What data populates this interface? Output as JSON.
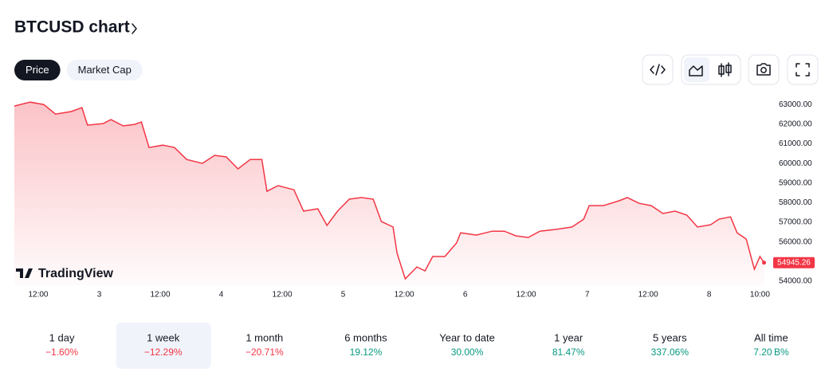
{
  "header": {
    "title": "BTCUSD chart"
  },
  "tabs": {
    "items": [
      "Price",
      "Market Cap"
    ],
    "active": 0
  },
  "watermark": "TradingView",
  "chart_data": {
    "type": "area",
    "color": "#f23645",
    "x": [
      -16.7,
      -13.6,
      -10.9,
      -8.6,
      -5.5,
      -3.4,
      -2.3,
      0.8,
      2.3,
      4.7,
      7.0,
      8.3,
      9.8,
      12.5,
      14.8,
      17.2,
      20.3,
      22.7,
      25.0,
      27.3,
      29.7,
      32.0,
      33.0,
      35.2,
      38.3,
      40.2,
      43.0,
      44.8,
      46.9,
      49.2,
      51.6,
      53.9,
      55.5,
      57.8,
      58.6,
      60.2,
      62.5,
      64.1,
      65.6,
      68.0,
      70.3,
      71.1,
      74.2,
      77.3,
      79.7,
      82.0,
      84.4,
      86.7,
      89.8,
      93.0,
      95.3,
      96.4,
      99.2,
      102.3,
      103.9,
      106.2,
      108.6,
      110.9,
      113.3,
      115.6,
      117.7,
      120.3,
      121.9,
      124.2,
      125.5,
      127.3,
      128.9,
      130.0,
      130.8
    ],
    "values": [
      62920,
      63120,
      63000,
      62510,
      62640,
      62840,
      61950,
      62030,
      62230,
      61910,
      61990,
      62110,
      60810,
      60930,
      60810,
      60200,
      60000,
      60410,
      60330,
      59720,
      60200,
      60200,
      58580,
      58870,
      58660,
      57570,
      57690,
      56840,
      57570,
      58180,
      58260,
      58180,
      57040,
      56760,
      55420,
      54120,
      54730,
      54530,
      55260,
      55260,
      55950,
      56470,
      56350,
      56550,
      56550,
      56310,
      56230,
      56550,
      56640,
      56760,
      57160,
      57850,
      57850,
      58100,
      58260,
      57970,
      57850,
      57450,
      57570,
      57370,
      56760,
      56880,
      57160,
      57280,
      56470,
      56150,
      54610,
      55260,
      54945.26
    ],
    "xlim": [
      -16.7,
      131.5
    ],
    "ylim": [
      53800,
      63250
    ],
    "xticks": [
      {
        "value": -12,
        "label": "12:00"
      },
      {
        "value": 0,
        "label": "3"
      },
      {
        "value": 12,
        "label": "12:00"
      },
      {
        "value": 24,
        "label": "4"
      },
      {
        "value": 36,
        "label": "12:00"
      },
      {
        "value": 48,
        "label": "5"
      },
      {
        "value": 60,
        "label": "12:00"
      },
      {
        "value": 72,
        "label": "6"
      },
      {
        "value": 84,
        "label": "12:00"
      },
      {
        "value": 96,
        "label": "7"
      },
      {
        "value": 108,
        "label": "12:00"
      },
      {
        "value": 120,
        "label": "8"
      },
      {
        "value": 130,
        "label": "10:00"
      }
    ],
    "yticks": [
      {
        "value": 54000,
        "label": "54000.00"
      },
      {
        "value": 56000,
        "label": "56000.00"
      },
      {
        "value": 57000,
        "label": "57000.00"
      },
      {
        "value": 58000,
        "label": "58000.00"
      },
      {
        "value": 59000,
        "label": "59000.00"
      },
      {
        "value": 60000,
        "label": "60000.00"
      },
      {
        "value": 61000,
        "label": "61000.00"
      },
      {
        "value": 62000,
        "label": "62000.00"
      },
      {
        "value": 63000,
        "label": "63000.00"
      }
    ]
  },
  "periods": {
    "selected": 1,
    "items": [
      {
        "label": "1 day",
        "change": "−1.60%",
        "color": "#f23645"
      },
      {
        "label": "1 week",
        "change": "−12.29%",
        "color": "#f23645"
      },
      {
        "label": "1 month",
        "change": "−20.71%",
        "color": "#f23645"
      },
      {
        "label": "6 months",
        "change": "19.12%",
        "color": "#089981"
      },
      {
        "label": "Year to date",
        "change": "30.00%",
        "color": "#089981"
      },
      {
        "label": "1 year",
        "change": "81.47%",
        "color": "#089981"
      },
      {
        "label": "5 years",
        "change": "337.06%",
        "color": "#089981"
      },
      {
        "label": "All time",
        "change": "7.20 B%",
        "color": "#089981"
      }
    ]
  }
}
